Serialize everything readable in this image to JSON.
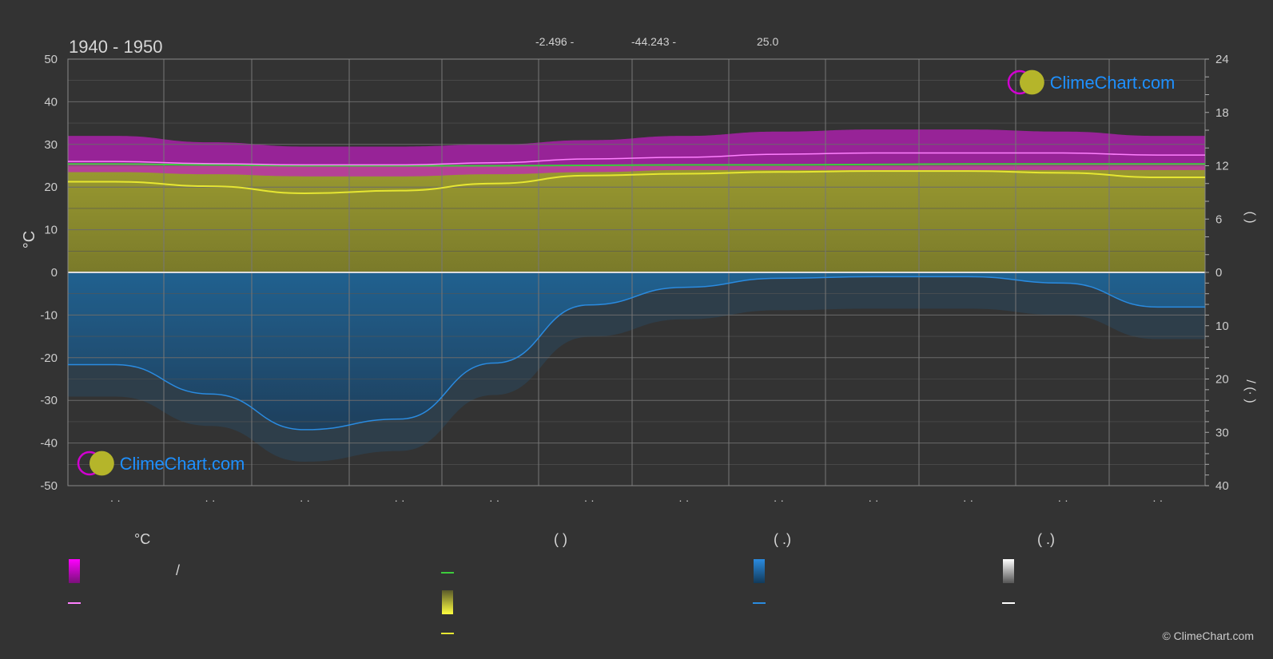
{
  "header": {
    "title": "1940 - 1950",
    "coords": [
      "-2.496 -",
      "-44.243 -",
      "25.0"
    ]
  },
  "footer": {
    "copyright": "© ClimeChart.com"
  },
  "logos": {
    "text": "ClimeChart.com"
  },
  "colors": {
    "background": "#333333",
    "temp_band": "#c21cc2",
    "sunshine_fill": "#8c8c2e",
    "sunshine_line": "#e6e632",
    "daylight_line": "#3ccc3c",
    "temp_line": "#ff80ff",
    "rain_fill": "#1e5f8f",
    "rain_line": "#2a8be0",
    "snow_line": "#dddddd",
    "brand_blue": "#1e90ff"
  },
  "legend": {
    "headers": [
      {
        "key": "temp",
        "text": "°C"
      },
      {
        "key": "sun",
        "text": "(          )"
      },
      {
        "key": "rain",
        "text": "(   .)"
      },
      {
        "key": "snow",
        "text": "(   .)"
      }
    ],
    "slash": "/"
  },
  "chart_data": {
    "type": "area",
    "title": "1940 - 1950",
    "months": [
      "· ·",
      "· ·",
      "· ·",
      "· ·",
      "· ·",
      "· ·",
      "· ·",
      "· ·",
      "· ·",
      "· ·",
      "· ·",
      "· ·"
    ],
    "y_left": {
      "label": "°C",
      "range": [
        -50,
        50
      ],
      "ticks": [
        50,
        40,
        30,
        20,
        10,
        0,
        -10,
        -20,
        -30,
        -40,
        -50
      ]
    },
    "y_right_top": {
      "label": "(   )",
      "range": [
        0,
        24
      ],
      "ticks": [
        24,
        18,
        12,
        6,
        0
      ]
    },
    "y_right_bottom": {
      "label": "/ (·  )",
      "range": [
        0,
        40
      ],
      "ticks": [
        0,
        10,
        20,
        30,
        40
      ]
    },
    "grid": true,
    "series": [
      {
        "name": "temp_max_band_top",
        "values": [
          32,
          30.5,
          29.5,
          29.5,
          30,
          31,
          32,
          33,
          33.5,
          33.5,
          33,
          32
        ]
      },
      {
        "name": "temp_max_band_bottom",
        "values": [
          23.5,
          23,
          22.5,
          22.5,
          23,
          23.5,
          24,
          24,
          24,
          24,
          24,
          24
        ]
      },
      {
        "name": "temp_mean",
        "values": [
          26,
          25.5,
          25.2,
          25.2,
          25.7,
          26.6,
          27,
          27.7,
          28,
          28,
          28,
          27.5
        ]
      },
      {
        "name": "daylight",
        "values": [
          12.2,
          12.1,
          12.0,
          12.0,
          12.0,
          12.05,
          12.1,
          12.1,
          12.15,
          12.2,
          12.2,
          12.2
        ]
      },
      {
        "name": "sunshine",
        "values": [
          10.2,
          9.7,
          8.9,
          9.2,
          10.0,
          10.9,
          11.1,
          11.3,
          11.4,
          11.4,
          11.2,
          10.7
        ]
      },
      {
        "name": "rain",
        "values": [
          17.3,
          22.8,
          29.5,
          27.5,
          17.0,
          6.1,
          2.8,
          1.1,
          0.8,
          0.8,
          2.0,
          6.5
        ]
      }
    ]
  }
}
